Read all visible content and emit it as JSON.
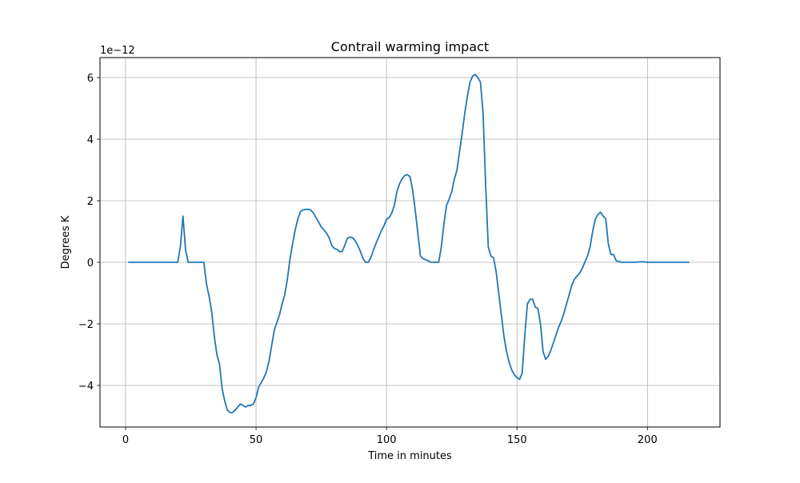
{
  "chart_data": {
    "type": "line",
    "title": "Contrail warming impact",
    "xlabel": "Time in minutes",
    "ylabel": "Degrees K",
    "y_scale_note": "1e−12",
    "xlim": [
      -9.8,
      227.8
    ],
    "ylim": [
      -5.35,
      6.65
    ],
    "x_ticks": [
      0,
      50,
      100,
      150,
      200
    ],
    "y_ticks": [
      -4,
      -2,
      0,
      2,
      4,
      6
    ],
    "grid": true,
    "series": [
      {
        "color": "#1f77b4",
        "x": [
          1,
          10,
          20,
          21,
          22,
          23,
          24,
          26,
          28,
          30,
          31,
          32,
          33,
          34,
          35,
          36,
          37,
          38,
          39,
          40,
          41,
          42,
          43,
          44,
          45,
          46,
          47,
          48,
          49,
          50,
          51,
          52,
          53,
          54,
          55,
          56,
          57,
          58,
          59,
          60,
          61,
          62,
          63,
          64,
          65,
          66,
          67,
          68,
          69,
          70,
          71,
          72,
          73,
          74,
          75,
          76,
          77,
          78,
          79,
          80,
          81,
          82,
          83,
          84,
          85,
          86,
          87,
          88,
          89,
          90,
          91,
          92,
          93,
          94,
          95,
          96,
          97,
          98,
          99,
          100,
          101,
          102,
          103,
          104,
          105,
          106,
          107,
          108,
          109,
          110,
          111,
          112,
          113,
          114,
          115,
          116,
          117,
          118,
          119,
          120,
          121,
          122,
          123,
          124,
          125,
          126,
          127,
          128,
          129,
          130,
          131,
          132,
          133,
          134,
          135,
          136,
          137,
          138,
          139,
          140,
          141,
          142,
          143,
          144,
          145,
          146,
          147,
          148,
          149,
          150,
          151,
          152,
          153,
          154,
          155,
          156,
          157,
          158,
          159,
          160,
          161,
          162,
          163,
          164,
          165,
          166,
          167,
          168,
          169,
          170,
          171,
          172,
          173,
          174,
          175,
          176,
          177,
          178,
          179,
          180,
          181,
          182,
          183,
          184,
          185,
          186,
          187,
          188,
          190,
          195,
          198,
          200,
          205,
          210,
          216
        ],
        "y": [
          0,
          0,
          0,
          0.5,
          1.5,
          0.4,
          0,
          0,
          0,
          0,
          -0.7,
          -1.1,
          -1.6,
          -2.4,
          -3.0,
          -3.3,
          -4.1,
          -4.5,
          -4.8,
          -4.88,
          -4.88,
          -4.8,
          -4.7,
          -4.6,
          -4.65,
          -4.7,
          -4.65,
          -4.65,
          -4.6,
          -4.4,
          -4.05,
          -3.9,
          -3.75,
          -3.55,
          -3.2,
          -2.7,
          -2.2,
          -1.95,
          -1.7,
          -1.35,
          -1.05,
          -0.55,
          0.1,
          0.6,
          1.05,
          1.4,
          1.65,
          1.7,
          1.72,
          1.72,
          1.7,
          1.6,
          1.45,
          1.3,
          1.15,
          1.05,
          0.95,
          0.8,
          0.55,
          0.45,
          0.42,
          0.35,
          0.35,
          0.55,
          0.78,
          0.82,
          0.8,
          0.7,
          0.55,
          0.35,
          0.12,
          0.0,
          0.0,
          0.15,
          0.4,
          0.62,
          0.82,
          1.02,
          1.18,
          1.4,
          1.45,
          1.6,
          1.85,
          2.3,
          2.55,
          2.72,
          2.82,
          2.85,
          2.78,
          2.35,
          1.7,
          0.95,
          0.2,
          0.12,
          0.08,
          0.05,
          0.0,
          0.0,
          0.0,
          0.0,
          0.5,
          1.25,
          1.85,
          2.05,
          2.3,
          2.7,
          3.0,
          3.6,
          4.2,
          4.85,
          5.4,
          5.85,
          6.05,
          6.1,
          6.0,
          5.85,
          4.85,
          2.5,
          0.5,
          0.2,
          0.15,
          -0.3,
          -1.0,
          -1.7,
          -2.4,
          -2.9,
          -3.25,
          -3.5,
          -3.65,
          -3.75,
          -3.8,
          -3.6,
          -2.35,
          -1.35,
          -1.2,
          -1.2,
          -1.45,
          -1.5,
          -2.0,
          -2.9,
          -3.15,
          -3.05,
          -2.85,
          -2.6,
          -2.35,
          -2.1,
          -1.9,
          -1.65,
          -1.35,
          -1.05,
          -0.75,
          -0.55,
          -0.45,
          -0.35,
          -0.2,
          0.0,
          0.2,
          0.5,
          1.0,
          1.4,
          1.55,
          1.63,
          1.5,
          1.42,
          0.6,
          0.25,
          0.25,
          0.05,
          0.0,
          0.0,
          0.02,
          0.0,
          0.0,
          0.0,
          0.0
        ]
      }
    ]
  }
}
